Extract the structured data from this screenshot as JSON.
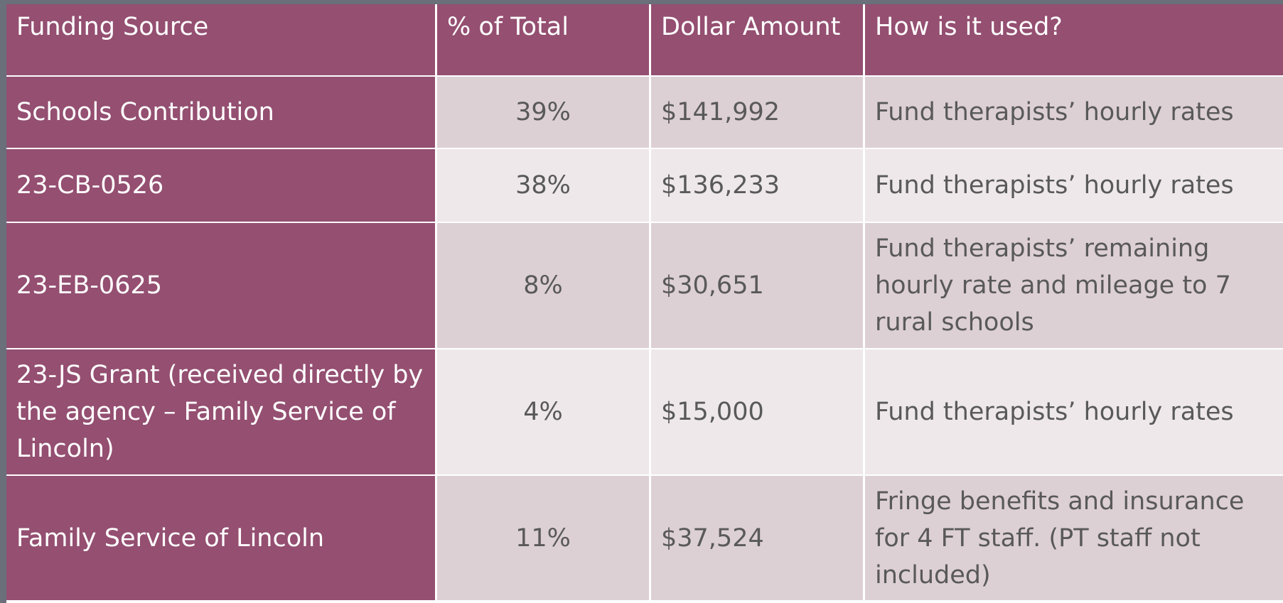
{
  "table": {
    "header": [
      "Funding Source",
      "% of Total",
      "Dollar Amount",
      "How is it used?"
    ],
    "rows": [
      [
        "Schools Contribution",
        "39%",
        "$141,992",
        "Fund therapists’ hourly rates"
      ],
      [
        "23-CB-0526",
        "38%",
        "$136,233",
        "Fund therapists’ hourly rates"
      ],
      [
        "23-EB-0625",
        "8%",
        "$30,651",
        "Fund therapists’ remaining hourly rate and mileage to 7 rural schools"
      ],
      [
        "23-JS Grant (received directly by the agency – Family Service of Lincoln)",
        "4%",
        "$15,000",
        "Fund therapists’ hourly rates"
      ],
      [
        "Family Service of Lincoln",
        "11%",
        "$37,524",
        "Fringe benefits and insurance for 4 FT staff. (PT staff not included)"
      ]
    ]
  }
}
